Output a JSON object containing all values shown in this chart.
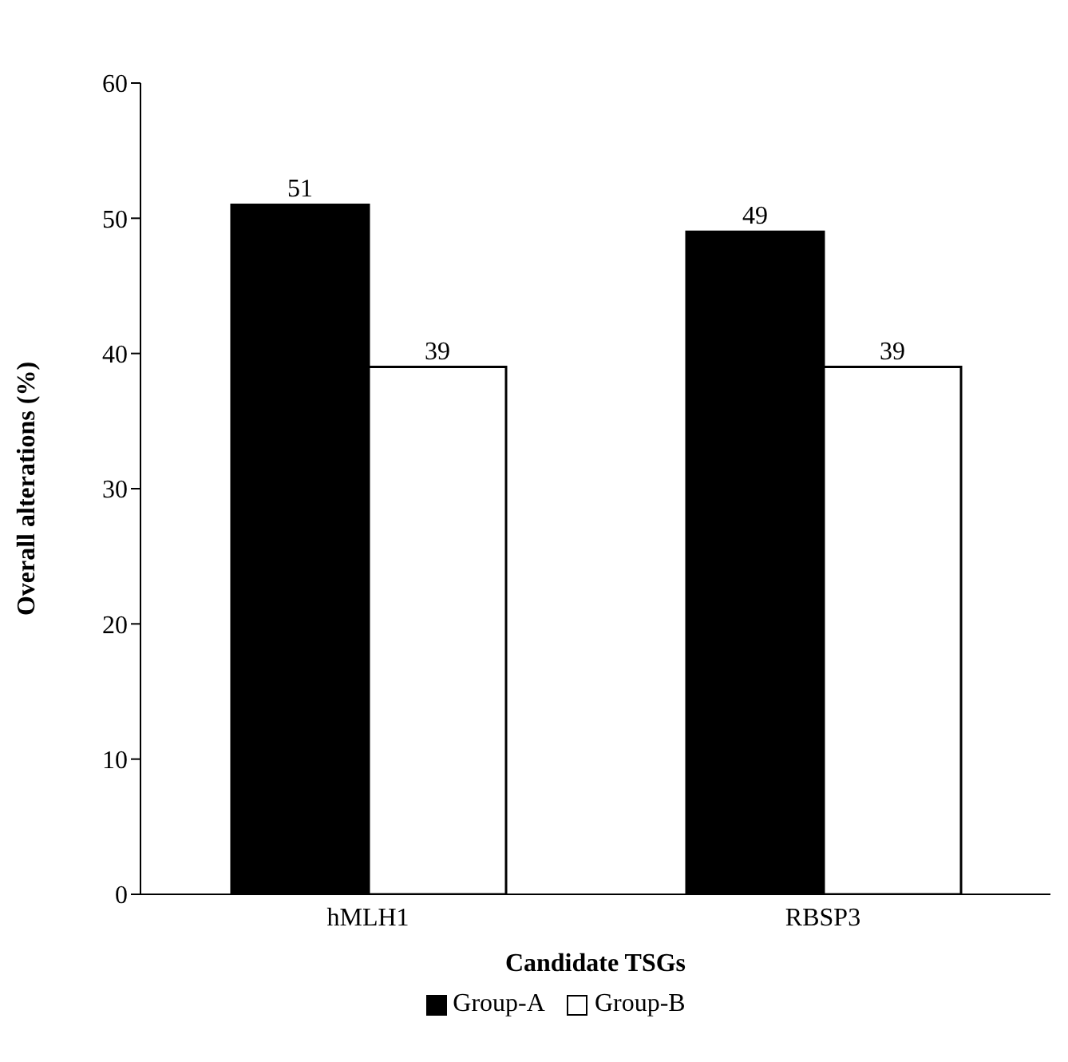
{
  "chart_data": {
    "type": "bar",
    "xlabel": "Candidate TSGs",
    "ylabel": "Overall alterations (%)",
    "categories": [
      "hMLH1",
      "RBSP3"
    ],
    "series": [
      {
        "name": "Group-A",
        "color": "#000000",
        "values": [
          51,
          49
        ]
      },
      {
        "name": "Group-B",
        "color": "#ffffff",
        "values": [
          39,
          39
        ]
      }
    ],
    "ylim": [
      0,
      60
    ],
    "yticks": [
      0,
      10,
      20,
      30,
      40,
      50,
      60
    ],
    "data_labels": true,
    "grid": false,
    "legend": "bottom"
  }
}
